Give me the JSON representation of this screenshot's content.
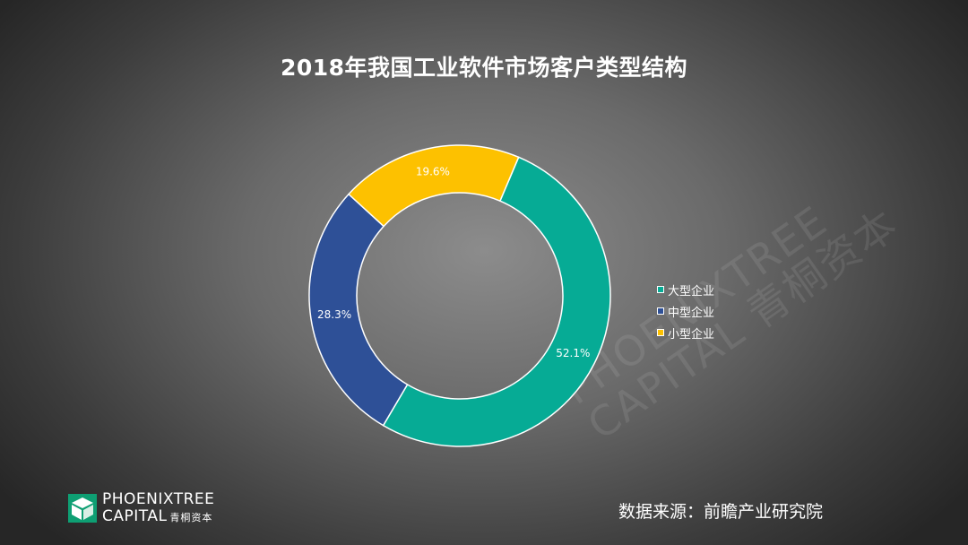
{
  "chart_data": {
    "type": "donut",
    "title": "2018年我国工业软件市场客户类型结构",
    "categories": [
      "大型企业",
      "中型企业",
      "小型企业"
    ],
    "values": [
      52.1,
      28.3,
      19.6
    ],
    "labels": [
      "52.1%",
      "28.3%",
      "19.6%"
    ],
    "colors": [
      "#06ab95",
      "#2e5097",
      "#fdc100"
    ],
    "legend_position": "right"
  },
  "source": "数据来源：前瞻产业研究院",
  "logo": {
    "line1": "PHOENIXTREE",
    "line2": "CAPITAL",
    "line2_cn": "青桐资本"
  },
  "watermark": {
    "line1": "PHOENIXTREE",
    "line2": "CAPITAL 青桐资本"
  }
}
